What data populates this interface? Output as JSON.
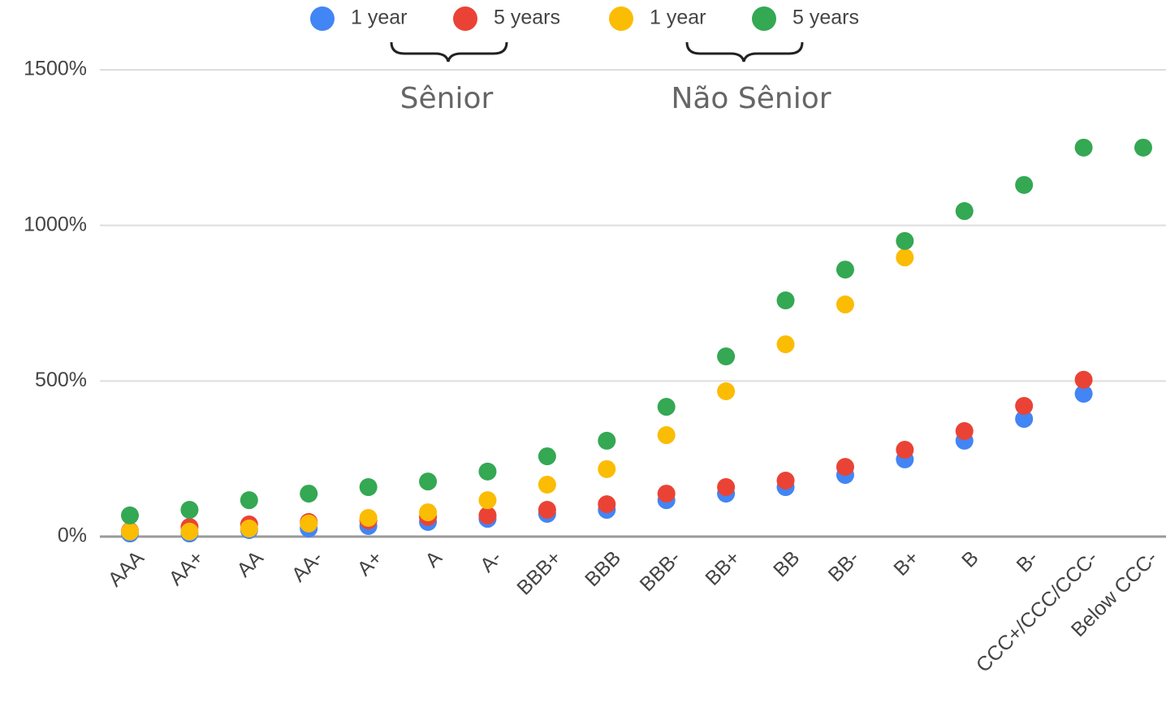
{
  "chart_data": {
    "type": "scatter",
    "categories": [
      "AAA",
      "AA+",
      "AA",
      "AA-",
      "A+",
      "A",
      "A-",
      "BBB+",
      "BBB",
      "BBB-",
      "BB+",
      "BB",
      "BB-",
      "B+",
      "B",
      "B-",
      "CCC+/CCC/CCC-",
      "Below CCC-"
    ],
    "series": [
      {
        "name": "1 year",
        "color": "#4285f4",
        "values": [
          10,
          10,
          21,
          26,
          34,
          47,
          57,
          73,
          86,
          117,
          138,
          159,
          198,
          248,
          308,
          378,
          459,
          null
        ]
      },
      {
        "name": "5 years",
        "color": "#ea4335",
        "values": [
          18,
          31,
          39,
          47,
          52,
          63,
          68,
          86,
          104,
          138,
          159,
          180,
          224,
          279,
          339,
          420,
          504,
          null
        ]
      },
      {
        "name": "1 year",
        "color": "#fbbc04",
        "values": [
          16,
          16,
          26,
          42,
          60,
          78,
          117,
          167,
          217,
          326,
          467,
          618,
          746,
          897,
          null,
          null,
          null,
          null
        ]
      },
      {
        "name": "5 years",
        "color": "#34a853",
        "values": [
          68,
          86,
          117,
          138,
          159,
          177,
          209,
          258,
          308,
          417,
          579,
          759,
          858,
          950,
          1046,
          1130,
          1250,
          1250
        ]
      }
    ],
    "annotations": [
      "Sênior",
      "Não Sênior"
    ],
    "ylim": [
      0,
      1500
    ],
    "yticks": [
      {
        "value": 0,
        "label": "0%"
      },
      {
        "value": 500,
        "label": "500%"
      },
      {
        "value": 1000,
        "label": "1000%"
      },
      {
        "value": 1500,
        "label": "1500%"
      }
    ],
    "grid": true,
    "legend": "top"
  }
}
